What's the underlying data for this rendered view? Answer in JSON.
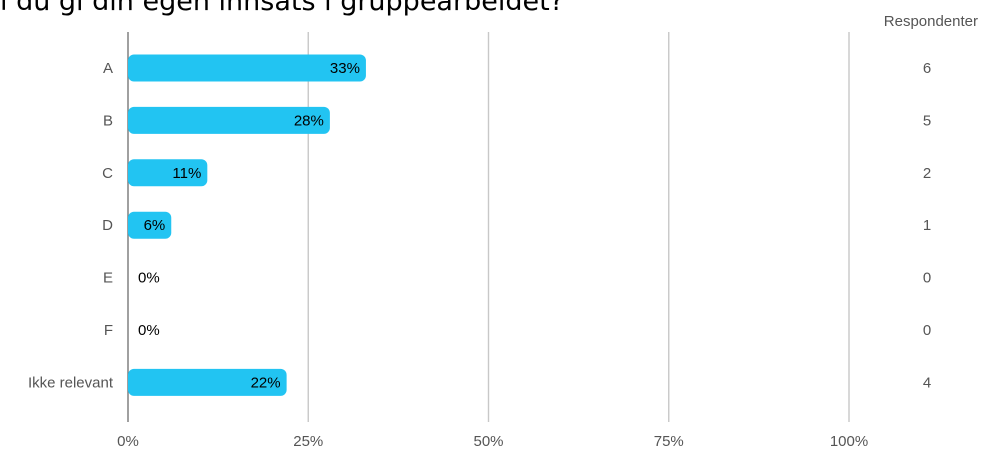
{
  "title": "l du gi din egen innsats i gruppearbeidet?",
  "respondents_header": "Respondenter",
  "colors": {
    "bar": "#22c4f2",
    "grid": "#c8c8c8",
    "text": "#555555"
  },
  "chart_data": {
    "type": "bar",
    "orientation": "horizontal",
    "title": "l du gi din egen innsats i gruppearbeidet?",
    "categories": [
      "A",
      "B",
      "C",
      "D",
      "E",
      "F",
      "Ikke relevant"
    ],
    "values": [
      33,
      28,
      11,
      6,
      0,
      0,
      22
    ],
    "value_labels": [
      "33%",
      "28%",
      "11%",
      "6%",
      "0%",
      "0%",
      "22%"
    ],
    "respondents": [
      6,
      5,
      2,
      1,
      0,
      0,
      4
    ],
    "xlim": [
      0,
      100
    ],
    "x_ticks": [
      0,
      25,
      50,
      75,
      100
    ],
    "x_tick_labels": [
      "0%",
      "25%",
      "50%",
      "75%",
      "100%"
    ],
    "grid": true
  }
}
